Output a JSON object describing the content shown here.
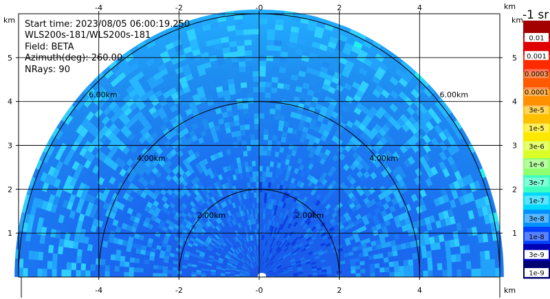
{
  "info": {
    "start_time": "Start time: 2023/08/05 06:00:19.250",
    "instrument": "WLS200s-181/WLS200s-181",
    "field": "Field: BETA",
    "azimuth": "Azimuth(deg): 260.00",
    "nrays": "NRays: 90"
  },
  "axes": {
    "x_unit": "km",
    "y_unit": "km",
    "x_ticks": [
      "-4",
      "-2",
      "-0",
      "2",
      "4"
    ],
    "x_tick_values": [
      -4,
      -2,
      0,
      2,
      4
    ],
    "y_ticks": [
      "1",
      "2",
      "3",
      "4",
      "5"
    ],
    "y_tick_values": [
      1,
      2,
      3,
      4,
      5
    ],
    "xlim": [
      -6,
      6
    ],
    "ylim": [
      0,
      6
    ]
  },
  "range_rings": [
    {
      "label": "2.00km",
      "radius_km": 2
    },
    {
      "label": "4.00km",
      "radius_km": 4
    },
    {
      "label": "6.00km",
      "radius_km": 6
    }
  ],
  "colorbar": {
    "unit_label": "-1 sr",
    "scale": "log",
    "labels": [
      "0.01",
      "0.001",
      "0.0003",
      "0.0001",
      "3e-5",
      "1e-5",
      "3e-6",
      "1e-6",
      "3e-7",
      "1e-7",
      "3e-8",
      "1e-8",
      "3e-9",
      "1e-9"
    ],
    "colors": [
      "#a30000",
      "#e00000",
      "#ff2a00",
      "#ff5a00",
      "#ff9000",
      "#ffc000",
      "#ffe800",
      "#d9ff26",
      "#8fff6f",
      "#3cffc0",
      "#00d8ff",
      "#0090ff",
      "#0040ff",
      "#0000b4",
      "#000070"
    ]
  },
  "colors": {
    "background": "#ffffff",
    "dominant_field": "#1e8cf0",
    "low_field": "#1a55e6",
    "outer_field": "#22b0ff"
  }
}
